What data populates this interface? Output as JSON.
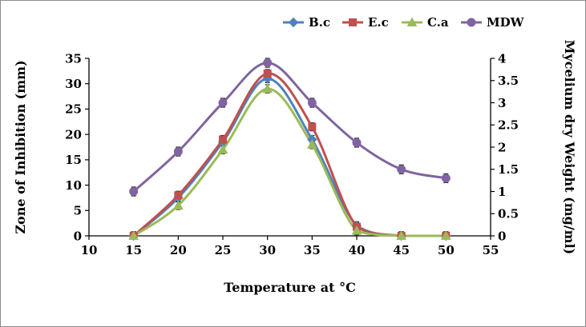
{
  "chart_data": {
    "type": "line",
    "x": [
      15,
      20,
      25,
      30,
      35,
      40,
      45,
      50
    ],
    "x_axis": {
      "label": "Temperature at °C",
      "min": 10,
      "max": 55,
      "ticks": [
        10,
        15,
        20,
        25,
        30,
        35,
        40,
        45,
        50,
        55
      ]
    },
    "y_left": {
      "label": "Zone of Inhibition (mm)",
      "min": 0,
      "max": 35,
      "ticks": [
        0,
        5,
        10,
        15,
        20,
        25,
        30,
        35
      ]
    },
    "y_right": {
      "label": "Mycelium dry Weight (mg/ml)",
      "min": 0,
      "max": 4,
      "ticks": [
        0,
        0.5,
        1,
        1.5,
        2,
        2.5,
        3,
        3.5,
        4
      ]
    },
    "series": [
      {
        "name": "B.c",
        "axis": "left",
        "color": "#4F81BD",
        "marker": "diamond",
        "values": [
          0,
          7.5,
          18.5,
          31,
          19,
          2,
          0,
          0
        ],
        "error": 0.8
      },
      {
        "name": "E.c",
        "axis": "left",
        "color": "#C0504D",
        "marker": "square",
        "values": [
          0,
          8,
          19,
          32,
          21.5,
          1.8,
          0,
          0
        ],
        "error": 0.8
      },
      {
        "name": "C.a",
        "axis": "left",
        "color": "#9BBB59",
        "marker": "triangle",
        "values": [
          0,
          6,
          17,
          29,
          18,
          1,
          0,
          0
        ],
        "error": 0.8
      },
      {
        "name": "MDW",
        "axis": "right",
        "color": "#8064A2",
        "marker": "circle",
        "values": [
          1.0,
          1.9,
          3.0,
          3.9,
          3.0,
          2.1,
          1.5,
          1.3
        ],
        "error": 0.1
      }
    ],
    "legend_position": "top",
    "grid": false,
    "error_bar_color": "#000000",
    "axis_color": "#000000"
  }
}
